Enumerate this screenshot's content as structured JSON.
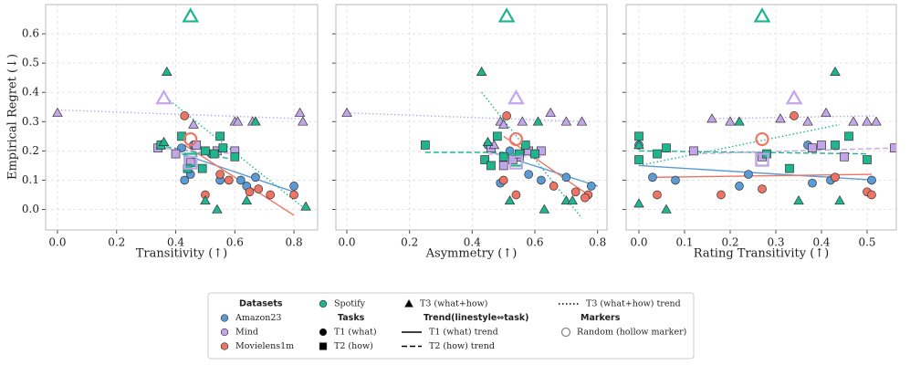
{
  "chart_data": [
    {
      "type": "scatter",
      "x_label": "Transitivity (↑)",
      "y_label": "Empirical Regret (↓)",
      "xlim": [
        -0.04,
        0.88
      ],
      "xticks": [
        {
          "value": 0,
          "label": "0.0"
        },
        0.2,
        0.4,
        0.6,
        0.8
      ],
      "ylim": [
        -0.07,
        0.7
      ],
      "yticks": [
        {
          "value": 0,
          "label": "0.0"
        },
        0.1,
        0.2,
        0.3,
        0.4,
        0.5,
        0.6
      ],
      "grid": true,
      "series": [
        {
          "color": "#5b9bd5",
          "marker": "circle",
          "x": [
            0.43,
            0.45,
            0.42,
            0.62,
            0.64,
            0.67,
            0.8,
            0.52,
            0.55,
            0.46
          ],
          "y": [
            0.1,
            0.12,
            0.21,
            0.1,
            0.08,
            0.11,
            0.08,
            0.19,
            0.1,
            0.22
          ]
        },
        {
          "color": "#c3a6ea",
          "marker": "square",
          "x": [
            0.34,
            0.4,
            0.45,
            0.47,
            0.6,
            0.54
          ],
          "y": [
            0.21,
            0.19,
            0.16,
            0.22,
            0.2,
            0.2
          ]
        },
        {
          "color": "#c3a6ea",
          "marker": "triangle",
          "x": [
            0.0,
            0.35,
            0.46,
            0.6,
            0.61,
            0.66,
            0.82,
            0.83
          ],
          "y": [
            0.33,
            0.22,
            0.29,
            0.3,
            0.3,
            0.3,
            0.33,
            0.3
          ]
        },
        {
          "color": "#f07464",
          "marker": "circle",
          "x": [
            0.43,
            0.5,
            0.58,
            0.65,
            0.68,
            0.72,
            0.8,
            0.55
          ],
          "y": [
            0.32,
            0.05,
            0.1,
            0.06,
            0.07,
            0.05,
            0.05,
            0.12
          ]
        },
        {
          "color": "#1fb58f",
          "marker": "square",
          "x": [
            0.42,
            0.44,
            0.49,
            0.5,
            0.53,
            0.55,
            0.56,
            0.6,
            0.35
          ],
          "y": [
            0.25,
            0.14,
            0.14,
            0.2,
            0.19,
            0.25,
            0.21,
            0.18,
            0.22
          ]
        },
        {
          "color": "#1fb58f",
          "marker": "triangle",
          "x": [
            0.37,
            0.36,
            0.5,
            0.54,
            0.64,
            0.67,
            0.84
          ],
          "y": [
            0.47,
            0.23,
            0.03,
            0.0,
            0.03,
            0.3,
            0.01
          ]
        }
      ],
      "random": [
        {
          "color": "#1fb58f",
          "marker": "triangle",
          "x": 0.45,
          "y": 0.66
        },
        {
          "color": "#c3a6ea",
          "marker": "triangle",
          "x": 0.36,
          "y": 0.38
        },
        {
          "color": "#f07464",
          "marker": "circle",
          "x": 0.45,
          "y": 0.24
        },
        {
          "color": "#1fb58f",
          "marker": "square",
          "x": 0.45,
          "y": 0.17
        },
        {
          "color": "#c3a6ea",
          "marker": "square",
          "x": 0.45,
          "y": 0.16
        }
      ],
      "trends": [
        {
          "color": "#5b9bd5",
          "dash": "solid",
          "x": [
            0.42,
            0.8
          ],
          "y": [
            0.19,
            0.06
          ]
        },
        {
          "color": "#c3a6ea",
          "dash": "dotted",
          "x": [
            0.0,
            0.83
          ],
          "y": [
            0.34,
            0.31
          ]
        },
        {
          "color": "#f07464",
          "dash": "solid",
          "x": [
            0.43,
            0.8
          ],
          "y": [
            0.22,
            -0.02
          ]
        },
        {
          "color": "#1fb58f",
          "dash": "dashed",
          "x": [
            0.34,
            0.6
          ],
          "y": [
            0.22,
            0.17
          ]
        },
        {
          "color": "#1fb58f",
          "dash": "dotted",
          "x": [
            0.37,
            0.84
          ],
          "y": [
            0.38,
            0.0
          ]
        },
        {
          "color": "#c3a6ea",
          "dash": "dashed",
          "x": [
            0.34,
            0.6
          ],
          "y": [
            0.21,
            0.19
          ]
        }
      ]
    },
    {
      "type": "scatter",
      "x_label": "Asymmetry (↑)",
      "xlim": [
        -0.035,
        0.83
      ],
      "xticks": [
        {
          "value": 0,
          "label": "0.0"
        },
        0.2,
        0.4,
        0.6,
        0.8
      ],
      "ylim": [
        -0.07,
        0.7
      ],
      "grid": true,
      "series": [
        {
          "color": "#5b9bd5",
          "marker": "circle",
          "x": [
            0.45,
            0.52,
            0.55,
            0.58,
            0.62,
            0.7,
            0.78,
            0.49
          ],
          "y": [
            0.22,
            0.2,
            0.18,
            0.12,
            0.1,
            0.11,
            0.08,
            0.09
          ]
        },
        {
          "color": "#c3a6ea",
          "marker": "square",
          "x": [
            0.46,
            0.5,
            0.55,
            0.58,
            0.62,
            0.53
          ],
          "y": [
            0.21,
            0.15,
            0.18,
            0.2,
            0.2,
            0.17
          ]
        },
        {
          "color": "#c3a6ea",
          "marker": "triangle",
          "x": [
            0.0,
            0.49,
            0.5,
            0.56,
            0.65,
            0.7,
            0.75,
            0.47
          ],
          "y": [
            0.33,
            0.3,
            0.29,
            0.3,
            0.33,
            0.3,
            0.3,
            0.22
          ]
        },
        {
          "color": "#f07464",
          "marker": "circle",
          "x": [
            0.51,
            0.5,
            0.54,
            0.66,
            0.73,
            0.77,
            0.76
          ],
          "y": [
            0.32,
            0.1,
            0.05,
            0.08,
            0.06,
            0.05,
            0.04
          ]
        },
        {
          "color": "#1fb58f",
          "marker": "square",
          "x": [
            0.25,
            0.44,
            0.48,
            0.5,
            0.55,
            0.57,
            0.6,
            0.46
          ],
          "y": [
            0.22,
            0.17,
            0.25,
            0.18,
            0.19,
            0.22,
            0.19,
            0.15
          ]
        },
        {
          "color": "#1fb58f",
          "marker": "triangle",
          "x": [
            0.43,
            0.45,
            0.52,
            0.61,
            0.63,
            0.7,
            0.72
          ],
          "y": [
            0.47,
            0.23,
            0.03,
            0.3,
            0.0,
            0.03,
            0.03
          ]
        }
      ],
      "random": [
        {
          "color": "#1fb58f",
          "marker": "triangle",
          "x": 0.51,
          "y": 0.66
        },
        {
          "color": "#c3a6ea",
          "marker": "triangle",
          "x": 0.54,
          "y": 0.38
        },
        {
          "color": "#f07464",
          "marker": "circle",
          "x": 0.54,
          "y": 0.24
        },
        {
          "color": "#1fb58f",
          "marker": "square",
          "x": 0.54,
          "y": 0.17
        },
        {
          "color": "#c3a6ea",
          "marker": "square",
          "x": 0.54,
          "y": 0.16
        }
      ],
      "trends": [
        {
          "color": "#5b9bd5",
          "dash": "solid",
          "x": [
            0.45,
            0.8
          ],
          "y": [
            0.2,
            0.08
          ]
        },
        {
          "color": "#c3a6ea",
          "dash": "dotted",
          "x": [
            0.0,
            0.76
          ],
          "y": [
            0.33,
            0.3
          ]
        },
        {
          "color": "#f07464",
          "dash": "solid",
          "x": [
            0.5,
            0.77
          ],
          "y": [
            0.25,
            0.05
          ]
        },
        {
          "color": "#1fb58f",
          "dash": "dashed",
          "x": [
            0.25,
            0.62
          ],
          "y": [
            0.195,
            0.195
          ]
        },
        {
          "color": "#1fb58f",
          "dash": "dotted",
          "x": [
            0.43,
            0.75
          ],
          "y": [
            0.4,
            -0.03
          ]
        },
        {
          "color": "#c3a6ea",
          "dash": "dashed",
          "x": [
            0.45,
            0.62
          ],
          "y": [
            0.19,
            0.18
          ]
        }
      ]
    },
    {
      "type": "scatter",
      "x_label": "Rating Transitivity (↑)",
      "xlim": [
        -0.028,
        0.564
      ],
      "xticks": [
        {
          "value": 0,
          "label": "0.0"
        },
        0.1,
        0.2,
        0.3,
        0.4,
        0.5
      ],
      "ylim": [
        -0.07,
        0.7
      ],
      "grid": true,
      "series": [
        {
          "color": "#5b9bd5",
          "marker": "circle",
          "x": [
            0.0,
            0.03,
            0.08,
            0.22,
            0.24,
            0.38,
            0.42,
            0.51,
            0.37
          ],
          "y": [
            0.22,
            0.11,
            0.1,
            0.08,
            0.12,
            0.09,
            0.1,
            0.1,
            0.22
          ]
        },
        {
          "color": "#c3a6ea",
          "marker": "square",
          "x": [
            0.12,
            0.38,
            0.4,
            0.45,
            0.56,
            0.27
          ],
          "y": [
            0.2,
            0.21,
            0.22,
            0.18,
            0.21,
            0.18
          ]
        },
        {
          "color": "#c3a6ea",
          "marker": "triangle",
          "x": [
            0.16,
            0.2,
            0.31,
            0.37,
            0.41,
            0.47,
            0.5,
            0.52
          ],
          "y": [
            0.31,
            0.3,
            0.31,
            0.3,
            0.33,
            0.3,
            0.3,
            0.3
          ]
        },
        {
          "color": "#f07464",
          "marker": "circle",
          "x": [
            0.04,
            0.18,
            0.27,
            0.34,
            0.43,
            0.5,
            0.51
          ],
          "y": [
            0.05,
            0.05,
            0.07,
            0.32,
            0.11,
            0.06,
            0.05
          ]
        },
        {
          "color": "#1fb58f",
          "marker": "square",
          "x": [
            0.0,
            0.0,
            0.04,
            0.06,
            0.28,
            0.33,
            0.43,
            0.46,
            0.5
          ],
          "y": [
            0.25,
            0.17,
            0.19,
            0.21,
            0.19,
            0.14,
            0.22,
            0.25,
            0.17
          ]
        },
        {
          "color": "#1fb58f",
          "marker": "triangle",
          "x": [
            0.0,
            0.0,
            0.06,
            0.22,
            0.35,
            0.43,
            0.44
          ],
          "y": [
            0.02,
            0.22,
            0.0,
            0.3,
            0.03,
            0.47,
            0.03
          ]
        }
      ],
      "random": [
        {
          "color": "#1fb58f",
          "marker": "triangle",
          "x": 0.27,
          "y": 0.66
        },
        {
          "color": "#c3a6ea",
          "marker": "triangle",
          "x": 0.34,
          "y": 0.38
        },
        {
          "color": "#f07464",
          "marker": "circle",
          "x": 0.27,
          "y": 0.24
        },
        {
          "color": "#1fb58f",
          "marker": "square",
          "x": 0.27,
          "y": 0.17
        },
        {
          "color": "#c3a6ea",
          "marker": "square",
          "x": 0.27,
          "y": 0.17
        }
      ],
      "trends": [
        {
          "color": "#5b9bd5",
          "dash": "solid",
          "x": [
            0.0,
            0.52
          ],
          "y": [
            0.15,
            0.1
          ]
        },
        {
          "color": "#f07464",
          "dash": "solid",
          "x": [
            0.04,
            0.51
          ],
          "y": [
            0.11,
            0.12
          ]
        },
        {
          "color": "#c3a6ea",
          "dash": "dotted",
          "x": [
            0.16,
            0.52
          ],
          "y": [
            0.31,
            0.32
          ]
        },
        {
          "color": "#1fb58f",
          "dash": "dotted",
          "x": [
            0.0,
            0.44
          ],
          "y": [
            0.15,
            0.29
          ]
        },
        {
          "color": "#1fb58f",
          "dash": "dashed",
          "x": [
            0.0,
            0.5
          ],
          "y": [
            0.2,
            0.19
          ]
        },
        {
          "color": "#c3a6ea",
          "dash": "dashed",
          "x": [
            0.12,
            0.56
          ],
          "y": [
            0.19,
            0.21
          ]
        }
      ]
    }
  ],
  "legend": {
    "items": [
      {
        "label": "Datasets",
        "header": true
      },
      {
        "label": "Amazon23",
        "color": "#5b9bd5",
        "marker": "circle"
      },
      {
        "label": "Mind",
        "color": "#c3a6ea",
        "marker": "circle"
      },
      {
        "label": "Movielens1m",
        "color": "#f07464",
        "marker": "circle"
      },
      {
        "label": "Spotify",
        "color": "#1fb58f",
        "marker": "circle"
      },
      {
        "label": "Tasks",
        "header": true
      },
      {
        "label": "T1 (what)",
        "color": "#000000",
        "marker": "circle"
      },
      {
        "label": "T2 (how)",
        "color": "#000000",
        "marker": "square"
      },
      {
        "label": "T3 (what+how)",
        "color": "#000000",
        "marker": "triangle"
      },
      {
        "label": "Trend(linestyle⇔task)",
        "header": true
      },
      {
        "label": "T1 (what) trend",
        "dash": "solid"
      },
      {
        "label": "T2 (how) trend",
        "dash": "dashed"
      },
      {
        "label": "T3 (what+how) trend",
        "dash": "dotted"
      },
      {
        "label": "Markers",
        "header": true
      },
      {
        "label": "Random (hollow marker)",
        "color": "#888888",
        "marker": "hollow"
      }
    ]
  }
}
